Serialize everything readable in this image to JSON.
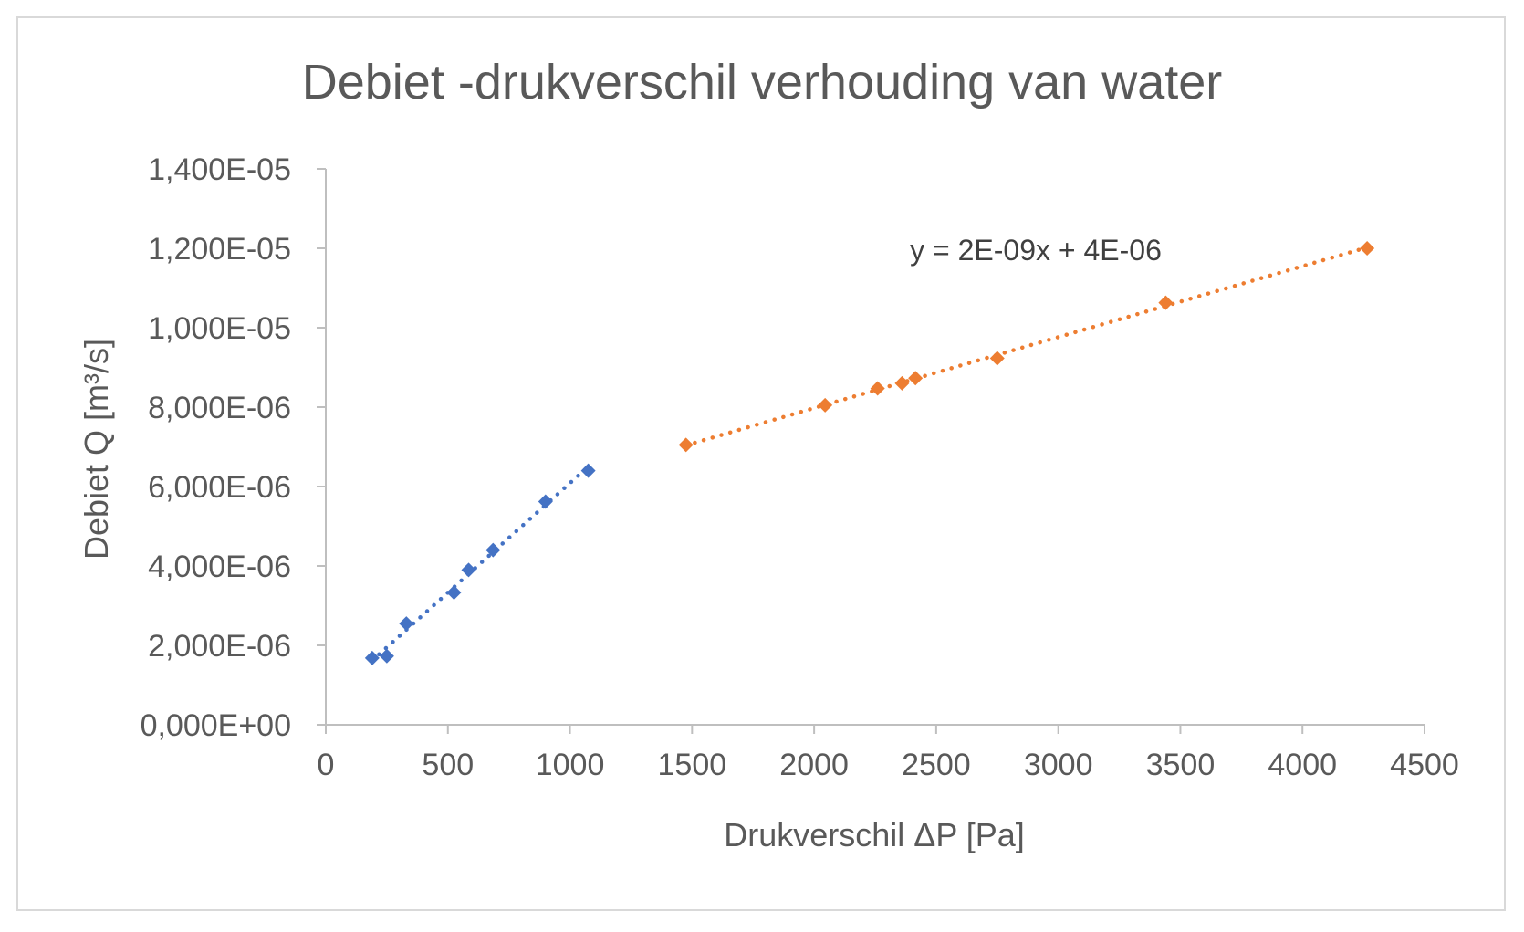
{
  "chart_data": {
    "type": "scatter",
    "title": "Debiet -drukverschil verhouding van water",
    "xlabel": "Drukverschil ΔP [Pa]",
    "ylabel": "Debiet Q [m³/s]",
    "xlim": [
      0,
      4500
    ],
    "ylim": [
      0,
      1.4e-05
    ],
    "x_ticks": [
      "0",
      "500",
      "1000",
      "1500",
      "2000",
      "2500",
      "3000",
      "3500",
      "4000",
      "4500"
    ],
    "y_ticks": [
      "0,000E+00",
      "2,000E-06",
      "4,000E-06",
      "6,000E-06",
      "8,000E-06",
      "1,000E-05",
      "1,200E-05",
      "1,400E-05"
    ],
    "grid": false,
    "legend": "none",
    "series": [
      {
        "color": "#4472c4",
        "marker": "diamond",
        "trendline": "dotted-linear",
        "points": [
          {
            "x": 190,
            "y": 1.68e-06
          },
          {
            "x": 250,
            "y": 1.73e-06
          },
          {
            "x": 330,
            "y": 2.55e-06
          },
          {
            "x": 525,
            "y": 3.33e-06
          },
          {
            "x": 585,
            "y": 3.9e-06
          },
          {
            "x": 685,
            "y": 4.4e-06
          },
          {
            "x": 900,
            "y": 5.62e-06
          },
          {
            "x": 1075,
            "y": 6.4e-06
          }
        ]
      },
      {
        "color": "#ed7d31",
        "marker": "diamond",
        "trendline": "dotted-linear",
        "equation": "y = 2E-09x + 4E-06",
        "points": [
          {
            "x": 1475,
            "y": 7.05e-06
          },
          {
            "x": 2045,
            "y": 8.05e-06
          },
          {
            "x": 2260,
            "y": 8.47e-06
          },
          {
            "x": 2360,
            "y": 8.6e-06
          },
          {
            "x": 2415,
            "y": 8.73e-06
          },
          {
            "x": 2750,
            "y": 9.23e-06
          },
          {
            "x": 3440,
            "y": 1.063e-05
          },
          {
            "x": 4265,
            "y": 1.2e-05
          }
        ]
      }
    ]
  }
}
